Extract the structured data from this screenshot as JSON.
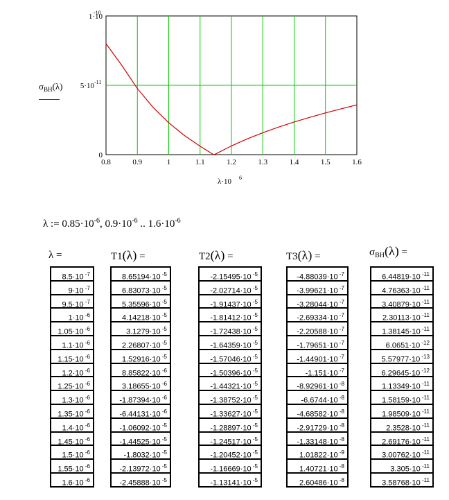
{
  "chart_data": {
    "type": "line",
    "xlabel": "λ·10^6",
    "ylabel": "σBH(λ)",
    "xlim": [
      0.8,
      1.6
    ],
    "ylim": [
      0,
      1e-10
    ],
    "x_ticks": [
      "0.8",
      "0.9",
      "1",
      "1.1",
      "1.2",
      "1.3",
      "1.4",
      "1.5",
      "1.6"
    ],
    "y_tick_top": "1·10^-10",
    "y_tick_mid": "5·10^-11",
    "y_tick_zero": "0",
    "grid": true,
    "series": [
      {
        "name": "σBH(λ)",
        "color": "#d00000",
        "x": [
          0.8,
          0.85,
          0.9,
          0.95,
          1.0,
          1.05,
          1.1,
          1.15,
          1.2,
          1.25,
          1.3,
          1.35,
          1.4,
          1.45,
          1.5,
          1.55,
          1.6
        ],
        "y": [
          8e-11,
          6.44819e-11,
          4.76363e-11,
          3.40879e-11,
          2.30113e-11,
          1.38145e-11,
          6.0651e-12,
          5.57977e-13,
          6.29645e-12,
          1.13349e-11,
          1.58159e-11,
          1.98509e-11,
          2.3528e-11,
          2.69176e-11,
          3.00762e-11,
          3.305e-11,
          3.58768e-11
        ]
      }
    ]
  },
  "plot": {
    "y_top": "1·10",
    "y_top_exp": "-10",
    "y_mid_label_pre": "5·10",
    "y_mid_exp": "-11",
    "y_zero": "0",
    "ylabel_sigma": "σ",
    "ylabel_sub": "BH",
    "ylabel_arg": "(λ)",
    "xlabel_base": "λ·10",
    "xlabel_exp": "6"
  },
  "range_definition": {
    "prefix": "λ := 0.85·10",
    "e1": "-6",
    "mid": ", 0.9·10",
    "e2": "-6",
    "end": " .. 1.6·10",
    "e3": "-6"
  },
  "tables": {
    "lambda": {
      "header": "λ =",
      "values": [
        "8.5·10-7",
        "9·10-7",
        "9.5·10-7",
        "1·10-6",
        "1.05·10-6",
        "1.1·10-6",
        "1.15·10-6",
        "1.2·10-6",
        "1.25·10-6",
        "1.3·10-6",
        "1.35·10-6",
        "1.4·10-6",
        "1.45·10-6",
        "1.5·10-6",
        "1.55·10-6",
        "1.6·10-6"
      ]
    },
    "T1": {
      "header": "T1",
      "arg": "(λ)",
      "eq": "=",
      "values": [
        "8.65194·10-5",
        "6.83073·10-5",
        "5.35596·10-5",
        "4.14218·10-5",
        "3.1279·10-5",
        "2.26807·10-5",
        "1.52916·10-5",
        "8.85822·10-6",
        "3.18655·10-6",
        "-1.87394·10-6",
        "-6.44131·10-6",
        "-1.06092·10-5",
        "-1.44525·10-5",
        "-1.8032·10-5",
        "-2.13972·10-5",
        "-2.45888·10-5"
      ]
    },
    "T2": {
      "header": "T2",
      "arg": "(λ)",
      "eq": "=",
      "values": [
        "-2.15495·10-5",
        "-2.02714·10-5",
        "-1.91437·10-5",
        "-1.81412·10-5",
        "-1.72438·10-5",
        "-1.64359·10-5",
        "-1.57046·10-5",
        "-1.50396·10-5",
        "-1.44321·10-5",
        "-1.38752·10-5",
        "-1.33627·10-5",
        "-1.28897·10-5",
        "-1.24517·10-5",
        "-1.20452·10-5",
        "-1.16669·10-5",
        "-1.13141·10-5"
      ]
    },
    "T3": {
      "header": "T3",
      "arg": "(λ)",
      "eq": "=",
      "values": [
        "-4.88039·10-7",
        "-3.99621·10-7",
        "-3.28044·10-7",
        "-2.69334·10-7",
        "-2.20588·10-7",
        "-1.79651·10-7",
        "-1.44901·10-7",
        "-1.151·10-7",
        "-8.92961·10-8",
        "-6.6744·10-8",
        "-4.68582·10-8",
        "-2.91729·10-8",
        "-1.33148·10-8",
        "1.01822·10-9",
        "1.40721·10-8",
        "2.60486·10-8"
      ]
    },
    "sigma": {
      "header": "σ",
      "sub": "BH",
      "arg": "(λ)",
      "eq": "=",
      "values": [
        "6.44819·10-11",
        "4.76363·10-11",
        "3.40879·10-11",
        "2.30113·10-11",
        "1.38145·10-11",
        "6.0651·10-12",
        "5.57977·10-13",
        "6.29645·10-12",
        "1.13349·10-11",
        "1.58159·10-11",
        "1.98509·10-11",
        "2.3528·10-11",
        "2.69176·10-11",
        "3.00762·10-11",
        "3.305·10-11",
        "3.58768·10-11"
      ]
    }
  }
}
